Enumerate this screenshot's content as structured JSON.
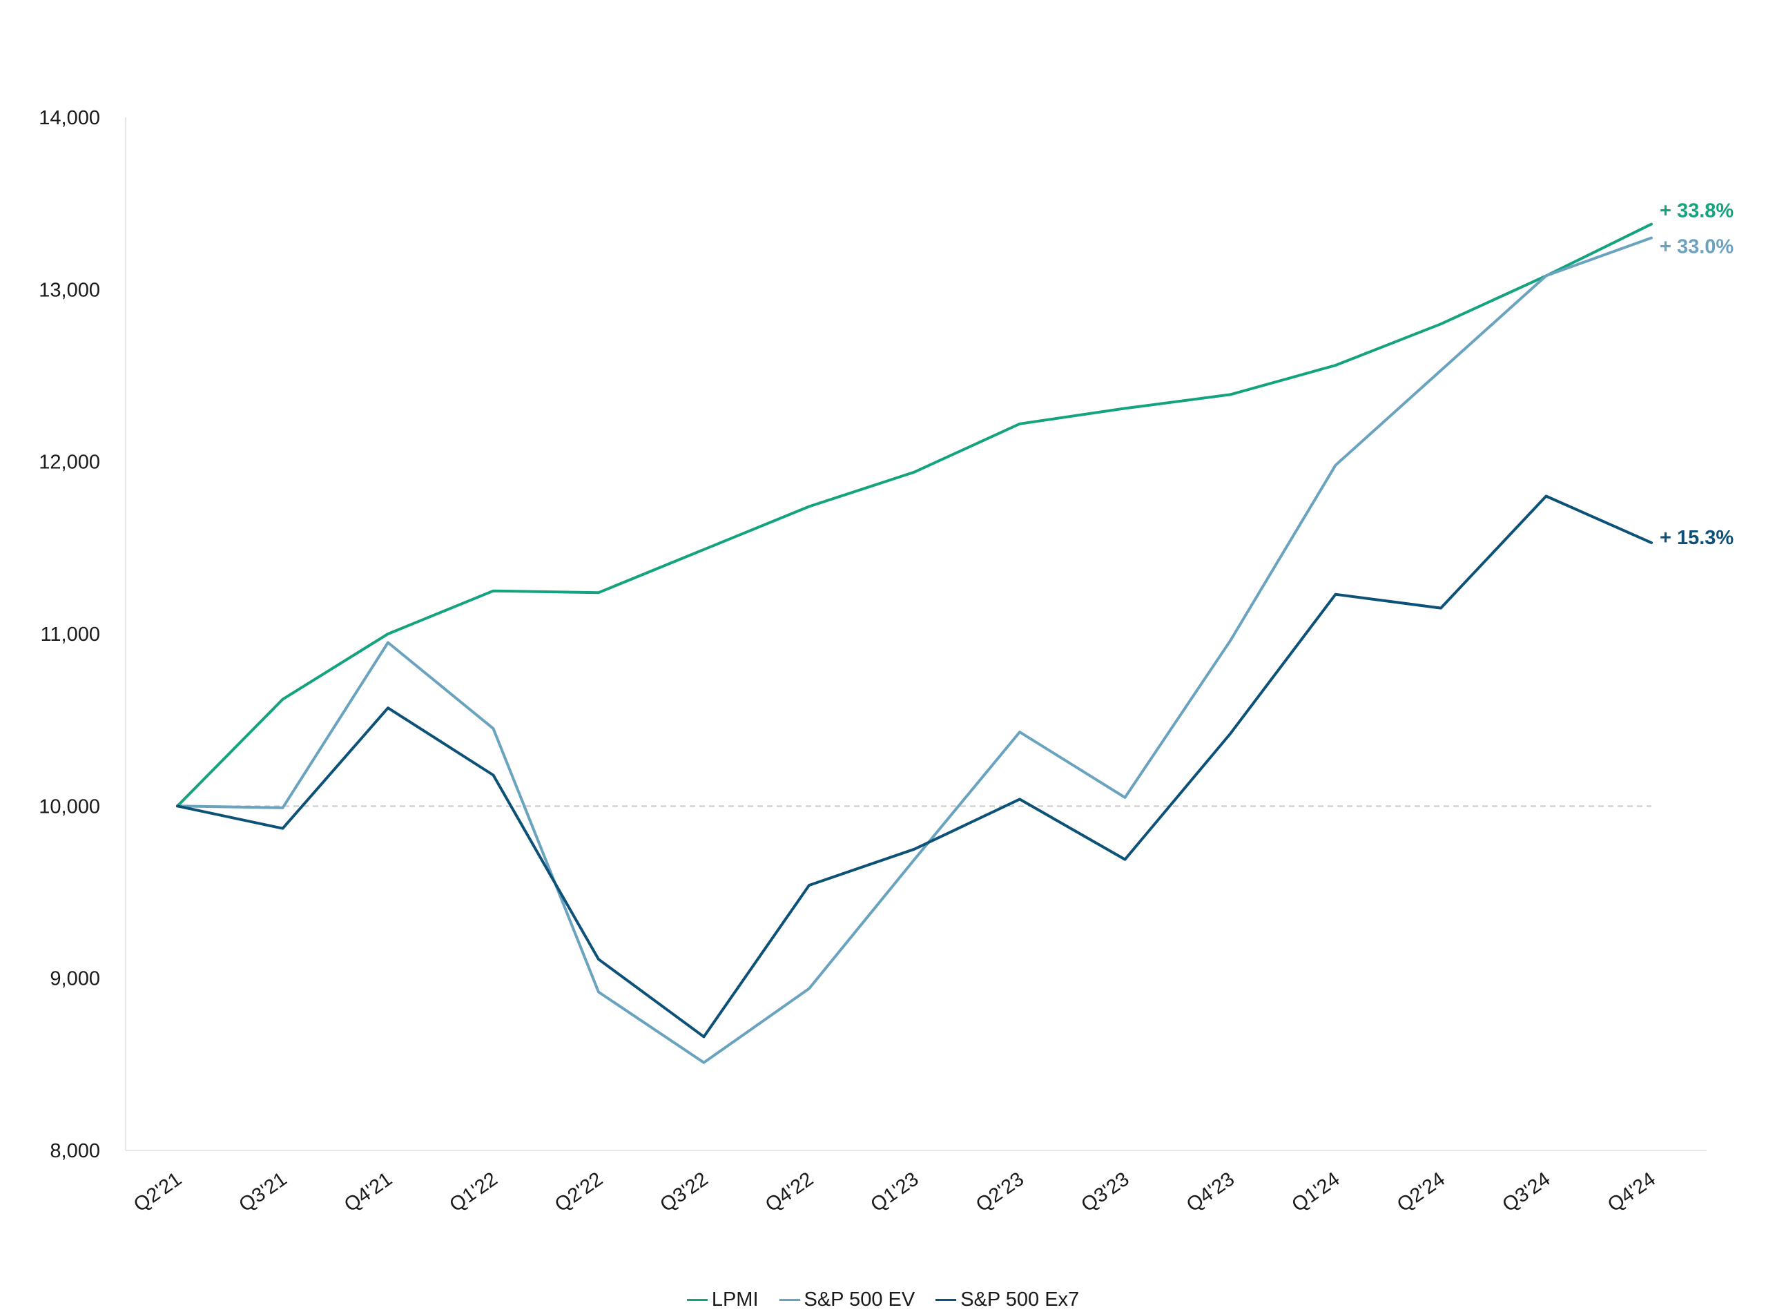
{
  "chart_data": {
    "type": "line",
    "categories": [
      "Q2'21",
      "Q3'21",
      "Q4'21",
      "Q1'22",
      "Q2'22",
      "Q3'22",
      "Q4'22",
      "Q1'23",
      "Q2'23",
      "Q3'23",
      "Q4'23",
      "Q1'24",
      "Q2'24",
      "Q3'24",
      "Q4'24"
    ],
    "ylim": [
      8000,
      14000
    ],
    "yticks": [
      8000,
      9000,
      10000,
      11000,
      12000,
      13000,
      14000
    ],
    "ytick_labels": [
      "8,000",
      "9,000",
      "10,000",
      "11,000",
      "12,000",
      "13,000",
      "14,000"
    ],
    "baseline": 10000,
    "grid": false,
    "legend_position": "bottom",
    "series": [
      {
        "name": "LPMI",
        "color": "#14a37f",
        "values": [
          10000,
          10620,
          11000,
          11250,
          11240,
          11490,
          11740,
          11940,
          12220,
          12310,
          12390,
          12560,
          12800,
          13080,
          13380
        ],
        "end_label": "+ 33.8%"
      },
      {
        "name": "S&P 500 EV",
        "color": "#6aa3bf",
        "values": [
          10000,
          9990,
          10950,
          10450,
          8920,
          8510,
          8940,
          9690,
          10430,
          10050,
          10960,
          11980,
          12530,
          13080,
          13300
        ],
        "end_label": "+ 33.0%"
      },
      {
        "name": "S&P 500 Ex7",
        "color": "#0c5177",
        "values": [
          10000,
          9870,
          10570,
          10180,
          9110,
          8660,
          9540,
          9750,
          10040,
          9690,
          10420,
          11230,
          11150,
          11800,
          11530
        ],
        "end_label": "+ 15.3%"
      }
    ]
  }
}
